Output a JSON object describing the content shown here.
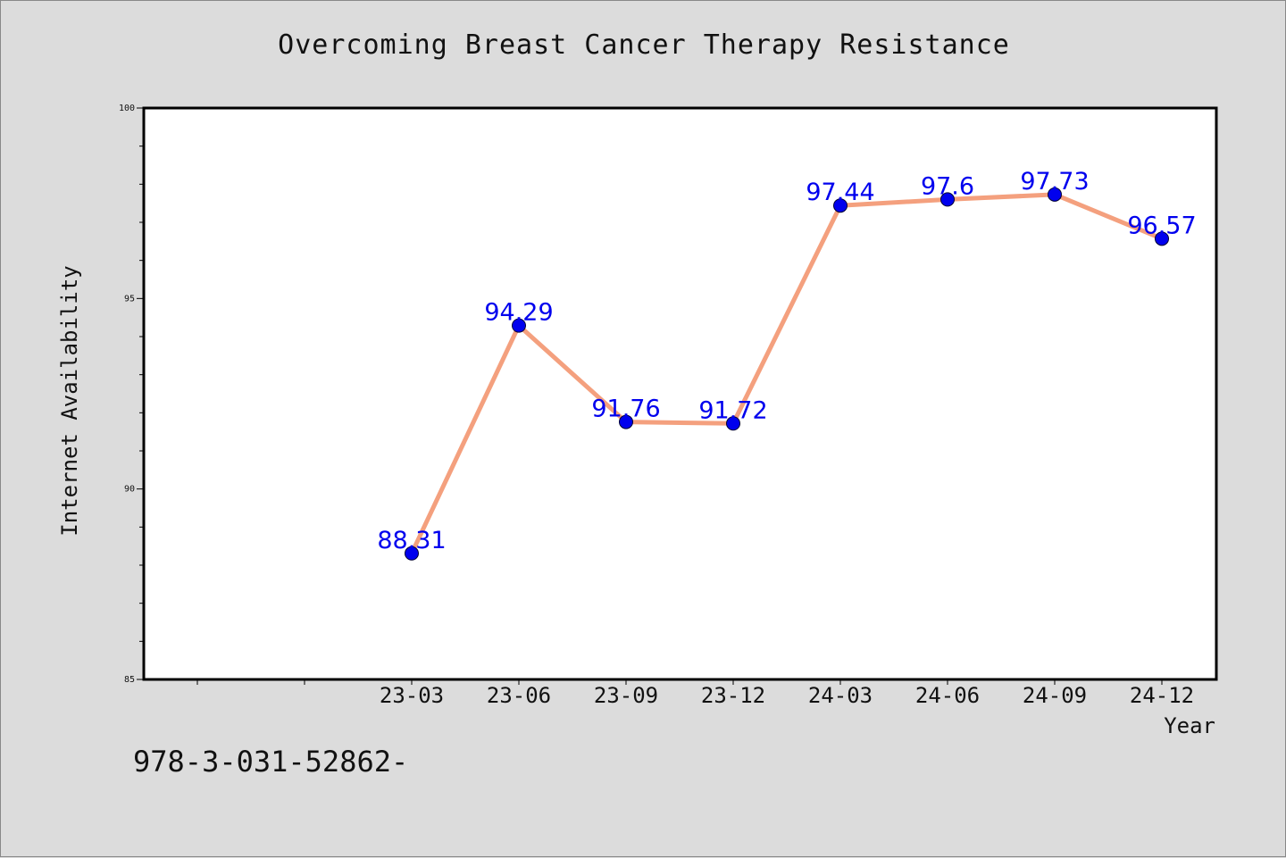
{
  "footer_text": "978-3-031-52862-",
  "chart_data": {
    "type": "line",
    "title": "Overcoming Breast Cancer Therapy Resistance",
    "xlabel": "Year",
    "ylabel": "Internet Availability",
    "categories": [
      "23-03",
      "23-06",
      "23-09",
      "23-12",
      "24-03",
      "24-06",
      "24-09",
      "24-12"
    ],
    "values": [
      88.31,
      94.29,
      91.76,
      91.72,
      97.44,
      97.6,
      97.73,
      96.57
    ],
    "data_labels": [
      "88.31",
      "94.29",
      "91.76",
      "91.72",
      "97.44",
      "97.6",
      "97.73",
      "96.57"
    ],
    "ylim": [
      85,
      100
    ],
    "yticks": [
      "85",
      "90",
      "95",
      "100"
    ],
    "grid": false,
    "colors": {
      "line": "#f4a07e",
      "marker": "#0000ee",
      "label": "#0000ee"
    }
  }
}
